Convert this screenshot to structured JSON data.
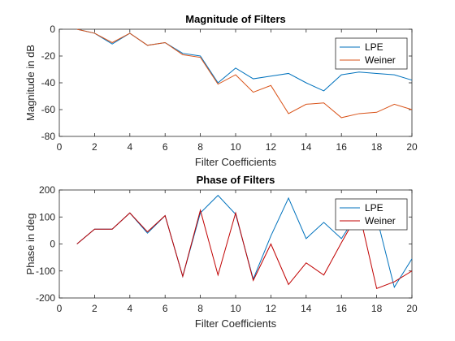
{
  "chart_data": [
    {
      "type": "line",
      "title": "Magnitude of  Filters",
      "xlabel": "Filter Coefficients",
      "ylabel": "Magnitude in dB",
      "xlim": [
        0,
        20
      ],
      "ylim": [
        -80,
        0
      ],
      "xticks": [
        "0",
        "2",
        "4",
        "6",
        "8",
        "10",
        "12",
        "14",
        "16",
        "18",
        "20"
      ],
      "yticks": [
        "0",
        "-20",
        "-40",
        "-60",
        "-80"
      ],
      "legend_position": "top-right",
      "x": [
        1,
        2,
        3,
        4,
        5,
        6,
        7,
        8,
        9,
        10,
        11,
        12,
        13,
        14,
        15,
        16,
        17,
        18,
        19,
        20
      ],
      "series": [
        {
          "name": "LPE",
          "color": "#0072BD",
          "values": [
            0,
            -3,
            -11,
            -3,
            -12,
            -10,
            -18,
            -20,
            -40,
            -29,
            -37,
            -35,
            -33,
            -40,
            -46,
            -34,
            -32,
            -33,
            -34,
            -38
          ]
        },
        {
          "name": "Weiner",
          "color": "#D95319",
          "values": [
            0,
            -3,
            -10,
            -3,
            -12,
            -10,
            -19,
            -21,
            -41,
            -34,
            -47,
            -42,
            -63,
            -56,
            -55,
            -66,
            -63,
            -62,
            -56,
            -60
          ]
        }
      ]
    },
    {
      "type": "line",
      "title": "Phase of Filters",
      "xlabel": "Filter Coefficients",
      "ylabel": "Phase in deg",
      "xlim": [
        0,
        20
      ],
      "ylim": [
        -200,
        200
      ],
      "xticks": [
        "0",
        "2",
        "4",
        "6",
        "8",
        "10",
        "12",
        "14",
        "16",
        "18",
        "20"
      ],
      "yticks": [
        "200",
        "100",
        "0",
        "-100",
        "-200"
      ],
      "legend_position": "top-right",
      "x": [
        1,
        2,
        3,
        4,
        5,
        6,
        7,
        8,
        9,
        10,
        11,
        12,
        13,
        14,
        15,
        16,
        17,
        18,
        19,
        20
      ],
      "series": [
        {
          "name": "LPE",
          "color": "#0072BD",
          "values": [
            0,
            55,
            55,
            115,
            40,
            105,
            -120,
            115,
            180,
            110,
            -130,
            30,
            170,
            20,
            80,
            20,
            120,
            100,
            -160,
            -55
          ]
        },
        {
          "name": "Weiner",
          "color": "#C00000",
          "values": [
            0,
            55,
            55,
            115,
            45,
            105,
            -120,
            125,
            -115,
            115,
            -135,
            0,
            -150,
            -70,
            -115,
            5,
            120,
            -165,
            -140,
            -100
          ]
        }
      ]
    }
  ]
}
